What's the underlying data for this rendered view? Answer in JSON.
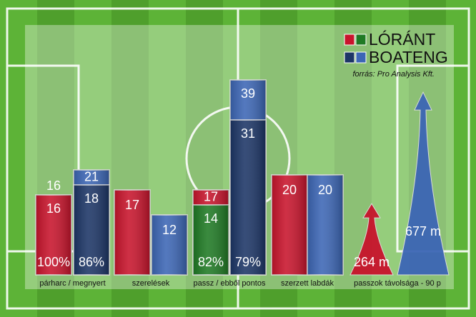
{
  "chart_data": {
    "type": "infographic-bar",
    "legend": [
      {
        "name": "LÓRÁNT",
        "colors": [
          "#c8142c",
          "#1f7a24"
        ]
      },
      {
        "name": "BOATENG",
        "colors": [
          "#1c3566",
          "#3c66b5"
        ]
      }
    ],
    "source": "forrás: Pro Analysis Kft.",
    "groups": [
      {
        "label": "párharc / megnyert",
        "bars": [
          {
            "total": 16,
            "part": 16,
            "percent": 100,
            "percent_label": "100%",
            "color": "#c8142c",
            "part_color": "#c8142c"
          },
          {
            "total": 21,
            "part": 18,
            "percent": 86,
            "percent_label": "86%",
            "color": "#3c66b5",
            "part_color": "#1c3566"
          }
        ]
      },
      {
        "label": "szerelések",
        "bars": [
          {
            "total": 17,
            "color": "#c8142c"
          },
          {
            "total": 12,
            "color": "#3c66b5"
          }
        ]
      },
      {
        "label": "passz / ebből pontos",
        "bars": [
          {
            "total": 17,
            "part": 14,
            "percent": 82,
            "percent_label": "82%",
            "color": "#c8142c",
            "part_color": "#1f7a24"
          },
          {
            "total": 39,
            "part": 31,
            "percent": 79,
            "percent_label": "79%",
            "color": "#3c66b5",
            "part_color": "#1c3566"
          }
        ]
      },
      {
        "label": "szerzett labdák",
        "bars": [
          {
            "total": 20,
            "color": "#c8142c"
          },
          {
            "total": 20,
            "color": "#3c66b5"
          }
        ]
      },
      {
        "label": "passzok távolsága - 90 p",
        "arrows": [
          {
            "value": 264,
            "value_label": "264 m",
            "color": "#c8142c"
          },
          {
            "value": 677,
            "value_label": "677 m",
            "color": "#3c66b5"
          }
        ]
      }
    ]
  }
}
